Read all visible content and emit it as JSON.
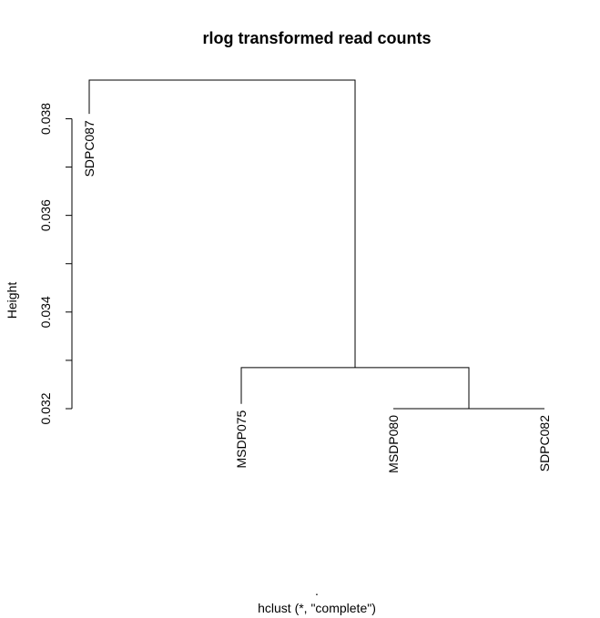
{
  "chart_data": {
    "type": "dendrogram",
    "title": "rlog transformed read counts",
    "ylabel": "Height",
    "xlabel": ".",
    "sublabel": "hclust (*, \"complete\")",
    "ylim": [
      0.032,
      0.0388
    ],
    "y_ticks": [
      0.032,
      0.033,
      0.034,
      0.035,
      0.036,
      0.037,
      0.038
    ],
    "y_tick_labels": [
      "0.032",
      "",
      "0.034",
      "",
      "0.036",
      "",
      "0.038"
    ],
    "leaves": [
      "SDPC087",
      "MSDP075",
      "MSDP080",
      "SDPC082"
    ],
    "merges": [
      {
        "left": "MSDP080",
        "right": "SDPC082",
        "height": 0.032
      },
      {
        "left": "MSDP075",
        "right": "merge-1",
        "height": 0.03285
      },
      {
        "left": "SDPC087",
        "right": "merge-2",
        "height": 0.0388
      }
    ],
    "leaf_label_top_heights": [
      0.0381,
      0.0321,
      0.032,
      0.032
    ],
    "grid": false
  }
}
